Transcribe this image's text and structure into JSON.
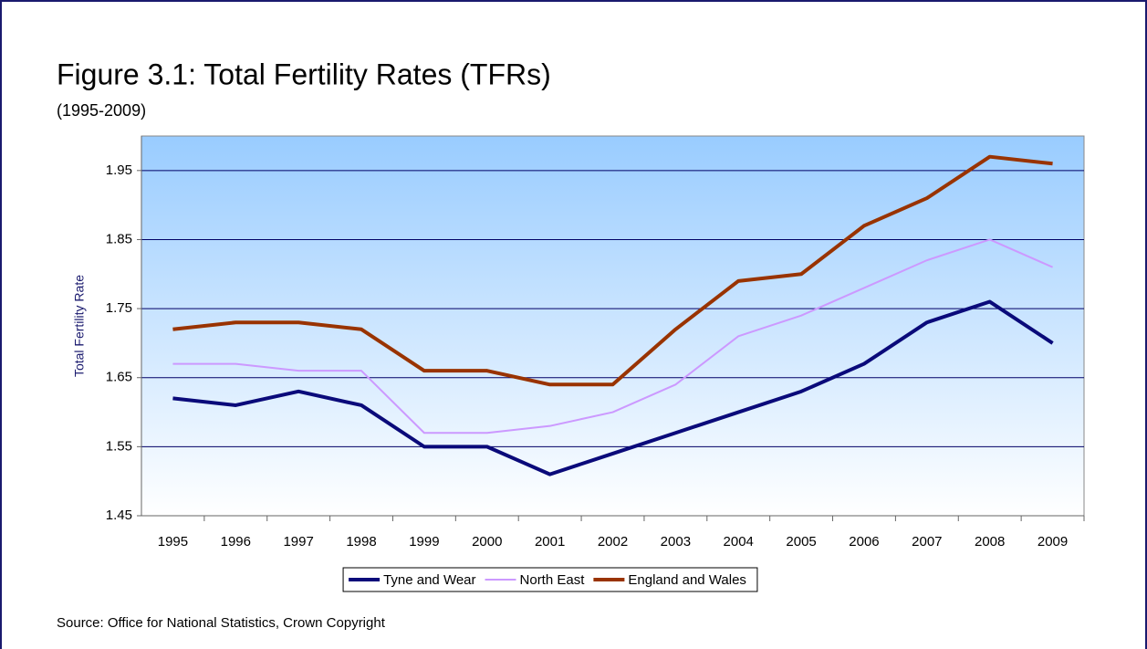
{
  "chart_data": {
    "type": "line",
    "title": "Figure 3.1: Total Fertility Rates (TFRs)",
    "subtitle": "(1995-2009)",
    "y_label": "Total Fertility Rate",
    "source": "Source: Office for National Statistics, Crown Copyright",
    "categories": [
      "1995",
      "1996",
      "1997",
      "1998",
      "1999",
      "2000",
      "2001",
      "2002",
      "2003",
      "2004",
      "2005",
      "2006",
      "2007",
      "2008",
      "2009"
    ],
    "series": [
      {
        "name": "Tyne and Wear",
        "color": "#0a0a7a",
        "values": [
          1.62,
          1.61,
          1.63,
          1.61,
          1.55,
          1.55,
          1.51,
          1.54,
          1.57,
          1.6,
          1.63,
          1.67,
          1.73,
          1.76,
          1.7
        ]
      },
      {
        "name": "North East",
        "color": "#cc99ff",
        "values": [
          1.67,
          1.67,
          1.66,
          1.66,
          1.57,
          1.57,
          1.58,
          1.6,
          1.64,
          1.71,
          1.74,
          1.78,
          1.82,
          1.85,
          1.81
        ]
      },
      {
        "name": "England and Wales",
        "color": "#993300",
        "values": [
          1.72,
          1.73,
          1.73,
          1.72,
          1.66,
          1.66,
          1.64,
          1.64,
          1.72,
          1.79,
          1.8,
          1.87,
          1.91,
          1.97,
          1.96
        ]
      }
    ],
    "ylim": [
      1.45,
      2.0
    ],
    "yticks": [
      1.45,
      1.55,
      1.65,
      1.75,
      1.85,
      1.95
    ],
    "grid": true,
    "legend": "bottom"
  }
}
